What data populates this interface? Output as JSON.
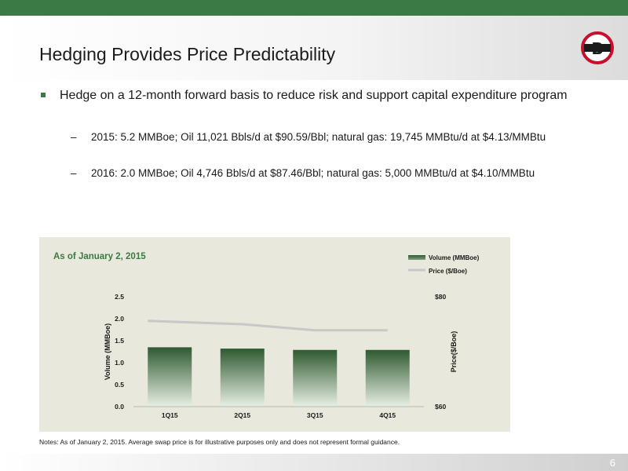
{
  "slide": {
    "title": "Hedging Provides Price Predictability",
    "page_number": "6",
    "logo_letter": "B"
  },
  "bullets": {
    "main": "Hedge on a 12-month forward basis to reduce risk and support capital expenditure program",
    "sub": [
      {
        "dash": "–",
        "text": "2015: 5.2 MMBoe; Oil 11,021 Bbls/d at $90.59/Bbl; natural gas: 19,745 MMBtu/d at $4.13/MMBtu"
      },
      {
        "dash": "–",
        "text": "2016: 2.0 MMBoe; Oil 4,746 Bbls/d at $87.46/Bbl; natural gas: 5,000 MMBtu/d at $4.10/MMBtu"
      }
    ]
  },
  "note": "Notes: As of January 2, 2015. Average swap price is for illustrative purposes only and does not represent formal guidance.",
  "colors": {
    "brand_green": "#3b7a44",
    "bar_top": "#2f5a30",
    "bar_bottom": "#e8efe6",
    "price_line": "#c8c8c8",
    "panel_bg": "#e8e8dc",
    "subtitle_green": "#3b7a44",
    "logo_red": "#c8102e"
  },
  "chart_data": {
    "type": "bar",
    "subtitle": "As of January 2, 2015",
    "categories": [
      "1Q15",
      "2Q15",
      "3Q15",
      "4Q15"
    ],
    "series": [
      {
        "name": "Volume (MMBoe)",
        "type": "bar",
        "axis": "left",
        "values": [
          1.35,
          1.32,
          1.29,
          1.29
        ]
      },
      {
        "name": "Price ($/Boe)",
        "type": "line",
        "axis": "right",
        "values": [
          75.6,
          75.0,
          73.9,
          73.9
        ]
      }
    ],
    "ylabel": "Volume (MMBoe)",
    "y2label": "Price($/Boe)",
    "ylim": [
      0,
      2.5
    ],
    "yticks": [
      "0.0",
      "0.5",
      "1.0",
      "1.5",
      "2.0",
      "2.5"
    ],
    "y2lim": [
      60,
      80
    ],
    "y2ticks": [
      "$60",
      "$80"
    ],
    "legend_position": "top-right",
    "grid": false
  }
}
